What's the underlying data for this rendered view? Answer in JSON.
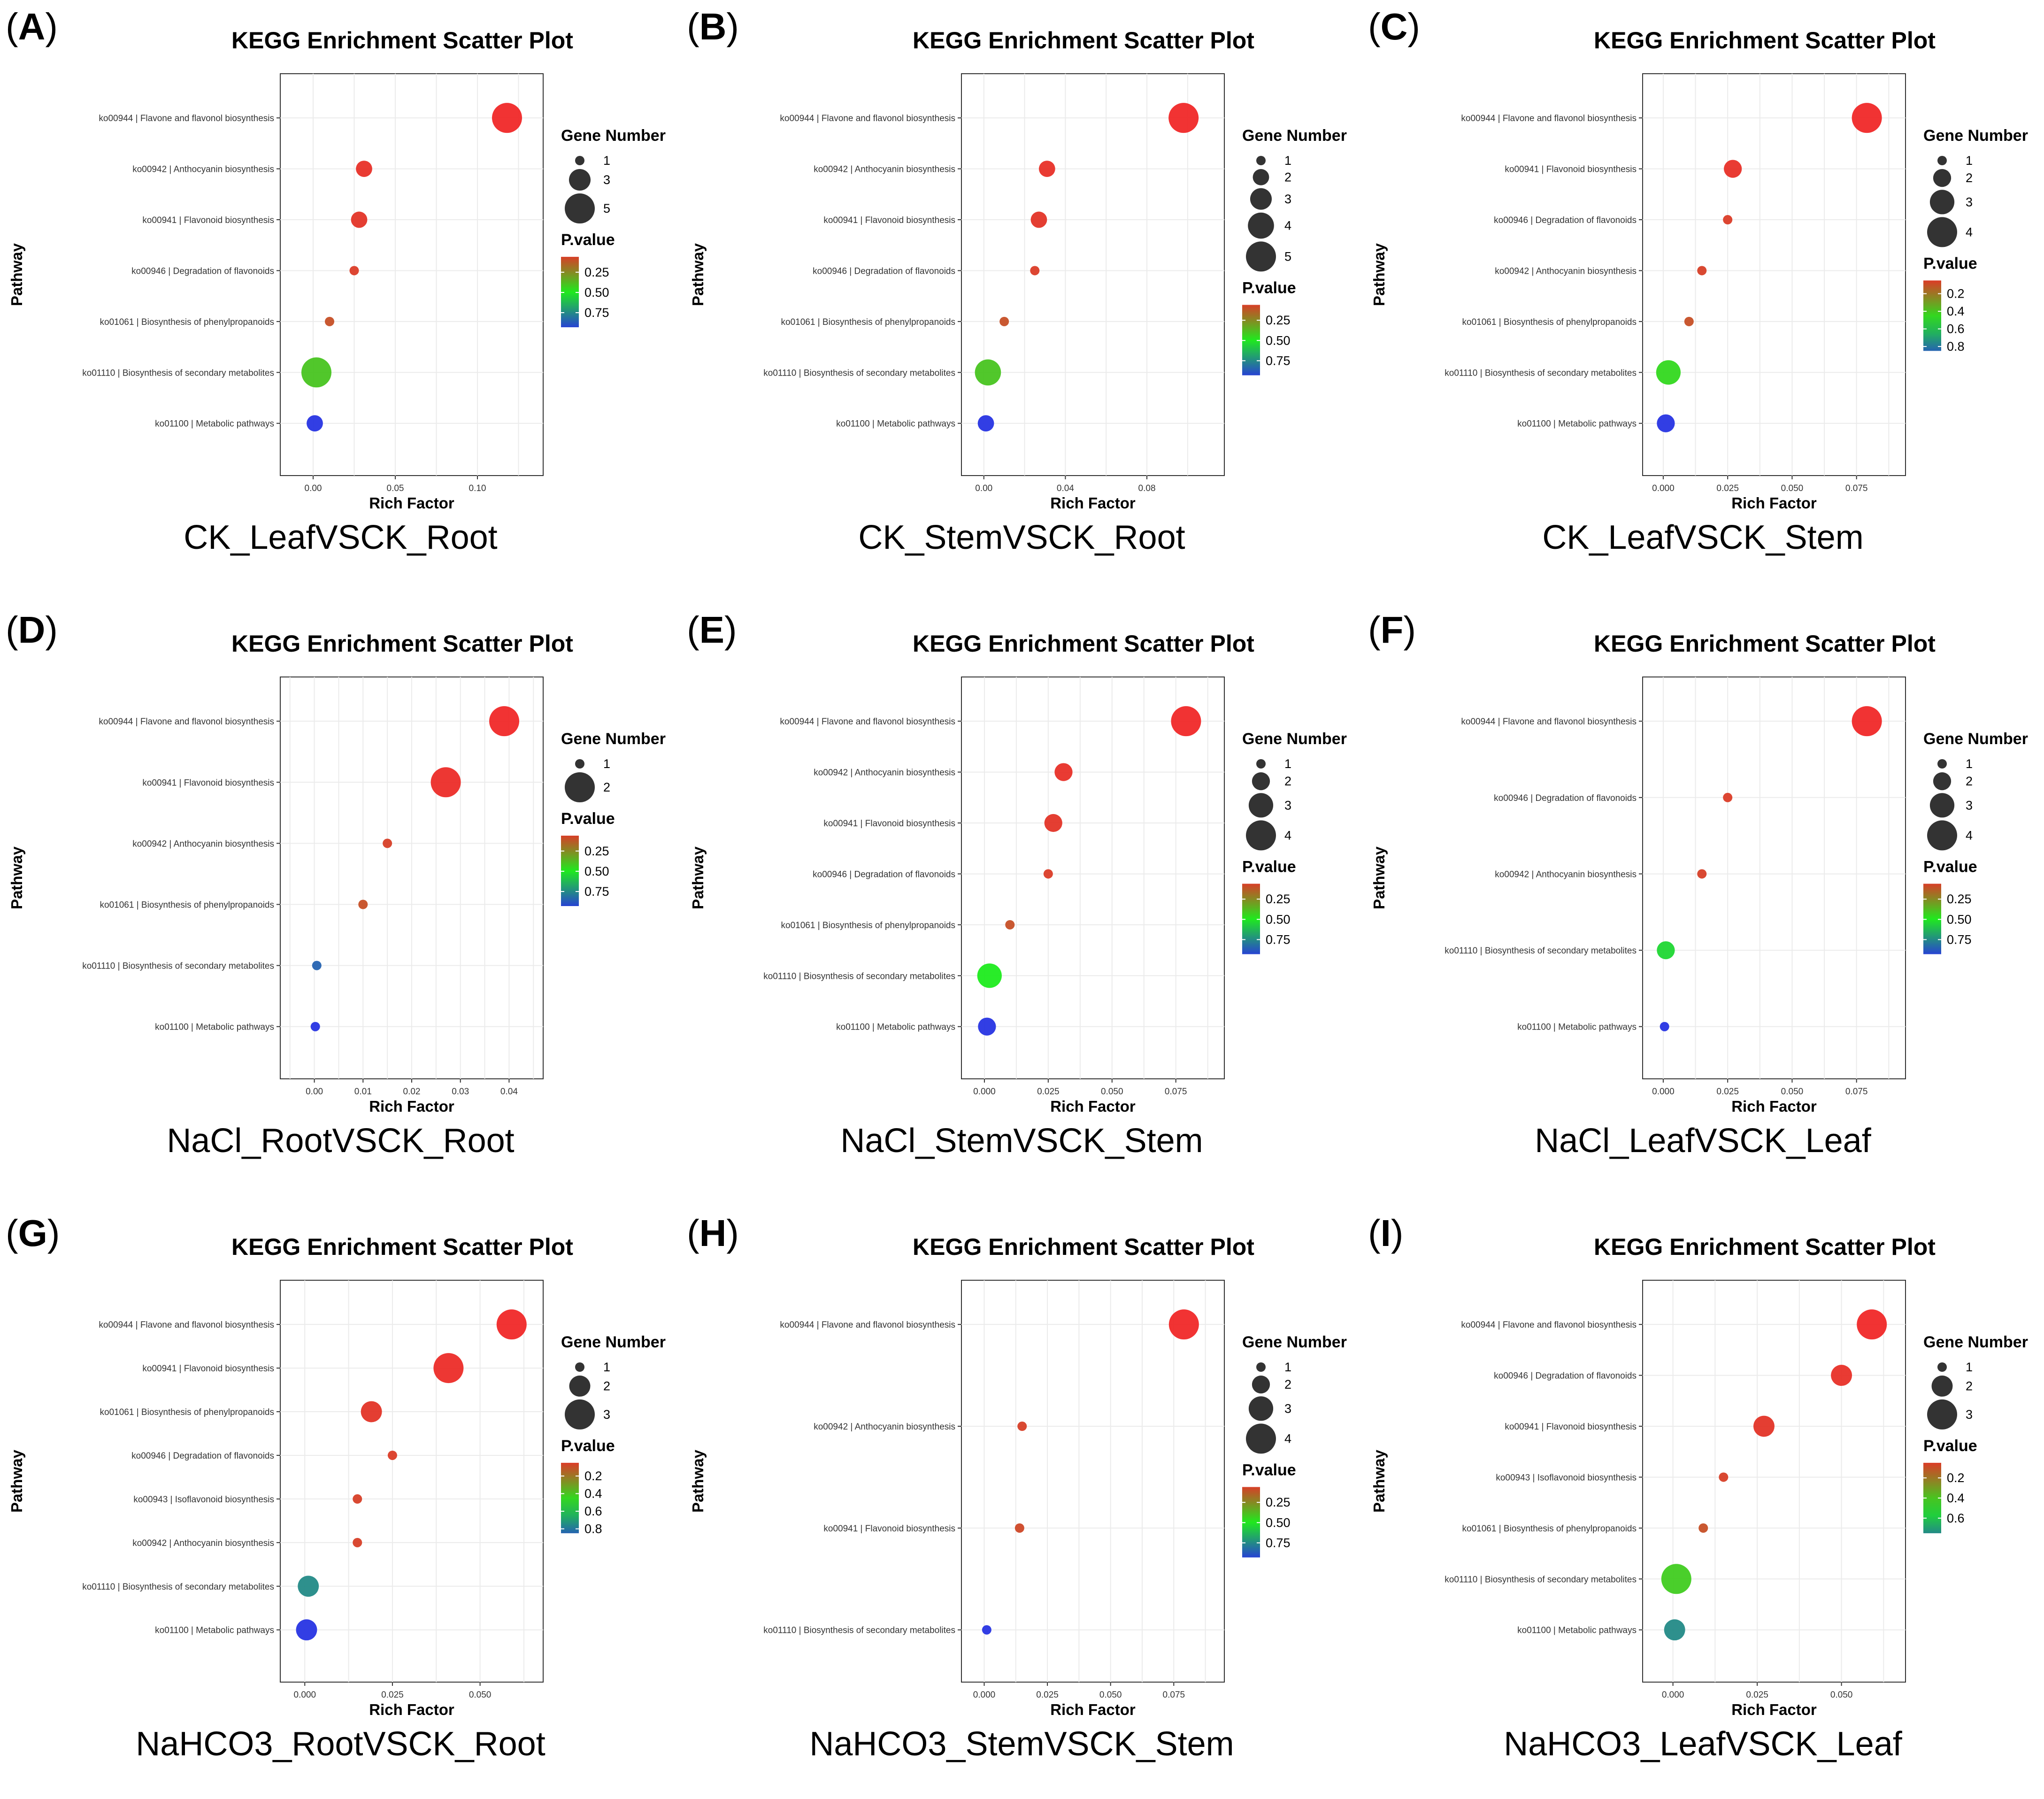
{
  "chart_data": [
    {
      "letter": "A",
      "type": "scatter",
      "title": "KEGG Enrichment Scatter Plot",
      "caption": "CK_LeafVSCK_Root",
      "xlabel": "Rich Factor",
      "ylabel": "Pathway",
      "xlim": [
        -0.02,
        0.14
      ],
      "xticks": [
        0,
        0.05,
        0.1
      ],
      "xtick_labels": [
        "0.00",
        "0.05",
        "0.10"
      ],
      "pathways": [
        "ko00944 | Flavone and flavonol biosynthesis",
        "ko00942 | Anthocyanin biosynthesis",
        "ko00941 | Flavonoid biosynthesis",
        "ko00946 | Degradation of flavonoids",
        "ko01061 | Biosynthesis of phenylpropanoids",
        "ko01110 | Biosynthesis of secondary metabolites",
        "ko01100 | Metabolic pathways"
      ],
      "rich_factor": [
        0.118,
        0.031,
        0.028,
        0.025,
        0.01,
        0.002,
        0.001
      ],
      "gene_number": [
        5,
        2,
        2,
        1,
        1,
        5,
        2
      ],
      "p_value": [
        0.0,
        0.02,
        0.03,
        0.05,
        0.1,
        0.4,
        0.97
      ],
      "size_legend": {
        "title": "Gene Number",
        "values": [
          1,
          3,
          5
        ],
        "labels": [
          "1",
          "3",
          "5"
        ]
      },
      "color_legend": {
        "title": "P.value",
        "min": 0.06,
        "max": 0.93,
        "ticks": [
          0.25,
          0.5,
          0.75
        ],
        "tick_labels": [
          "0.25",
          "0.50",
          "0.75"
        ]
      }
    },
    {
      "letter": "B",
      "type": "scatter",
      "title": "KEGG Enrichment Scatter Plot",
      "caption": "CK_StemVSCK_Root",
      "xlabel": "Rich Factor",
      "ylabel": "Pathway",
      "xlim": [
        -0.011,
        0.118
      ],
      "xticks": [
        0,
        0.04,
        0.08
      ],
      "xtick_labels": [
        "0.00",
        "0.04",
        "0.08"
      ],
      "pathways": [
        "ko00944 | Flavone and flavonol biosynthesis",
        "ko00942 | Anthocyanin biosynthesis",
        "ko00941 | Flavonoid biosynthesis",
        "ko00946 | Degradation of flavonoids",
        "ko01061 | Biosynthesis of phenylpropanoids",
        "ko01110 | Biosynthesis of secondary metabolites",
        "ko01100 | Metabolic pathways"
      ],
      "rich_factor": [
        0.098,
        0.031,
        0.027,
        0.025,
        0.01,
        0.002,
        0.001
      ],
      "gene_number": [
        5,
        2,
        2,
        1,
        1,
        4,
        2
      ],
      "p_value": [
        0.0,
        0.02,
        0.03,
        0.05,
        0.1,
        0.4,
        0.97
      ],
      "size_legend": {
        "title": "Gene Number",
        "values": [
          1,
          2,
          3,
          4,
          5
        ],
        "labels": [
          "1",
          "2",
          "3",
          "4",
          "5"
        ]
      },
      "color_legend": {
        "title": "P.value",
        "min": 0.06,
        "max": 0.93,
        "ticks": [
          0.25,
          0.5,
          0.75
        ],
        "tick_labels": [
          "0.25",
          "0.50",
          "0.75"
        ]
      }
    },
    {
      "letter": "C",
      "type": "scatter",
      "title": "KEGG Enrichment Scatter Plot",
      "caption": "CK_LeafVSCK_Stem",
      "xlabel": "Rich Factor",
      "ylabel": "Pathway",
      "xlim": [
        -0.008,
        0.094
      ],
      "xticks": [
        0,
        0.025,
        0.05,
        0.075
      ],
      "xtick_labels": [
        "0.000",
        "0.025",
        "0.050",
        "0.075"
      ],
      "pathways": [
        "ko00944 | Flavone and flavonol biosynthesis",
        "ko00941 | Flavonoid biosynthesis",
        "ko00946 | Degradation of flavonoids",
        "ko00942 | Anthocyanin biosynthesis",
        "ko01061 | Biosynthesis of phenylpropanoids",
        "ko01110 | Biosynthesis of secondary metabolites",
        "ko01100 | Metabolic pathways"
      ],
      "rich_factor": [
        0.079,
        0.027,
        0.025,
        0.015,
        0.01,
        0.002,
        0.001
      ],
      "gene_number": [
        4,
        2,
        1,
        1,
        1,
        3,
        2
      ],
      "p_value": [
        0.0,
        0.02,
        0.05,
        0.06,
        0.1,
        0.45,
        0.97
      ],
      "size_legend": {
        "title": "Gene Number",
        "values": [
          1,
          2,
          3,
          4
        ],
        "labels": [
          "1",
          "2",
          "3",
          "4"
        ]
      },
      "color_legend": {
        "title": "P.value",
        "min": 0.05,
        "max": 0.85,
        "ticks": [
          0.2,
          0.4,
          0.6,
          0.8
        ],
        "tick_labels": [
          "0.2",
          "0.4",
          "0.6",
          "0.8"
        ]
      }
    },
    {
      "letter": "D",
      "type": "scatter",
      "title": "KEGG Enrichment Scatter Plot",
      "caption": "NaCl_RootVSCK_Root",
      "xlabel": "Rich Factor",
      "ylabel": "Pathway",
      "xlim": [
        -0.007,
        0.047
      ],
      "xticks": [
        0,
        0.01,
        0.02,
        0.03,
        0.04
      ],
      "xtick_labels": [
        "0.00",
        "0.01",
        "0.02",
        "0.03",
        "0.04"
      ],
      "pathways": [
        "ko00944 | Flavone and flavonol biosynthesis",
        "ko00941 | Flavonoid biosynthesis",
        "ko00942 | Anthocyanin biosynthesis",
        "ko01061 | Biosynthesis of phenylpropanoids",
        "ko01110 | Biosynthesis of secondary metabolites",
        "ko01100 | Metabolic pathways"
      ],
      "rich_factor": [
        0.039,
        0.027,
        0.015,
        0.01,
        0.0005,
        0.0002
      ],
      "gene_number": [
        2,
        2,
        1,
        1,
        1,
        1
      ],
      "p_value": [
        0.0,
        0.01,
        0.06,
        0.1,
        0.85,
        0.97
      ],
      "size_legend": {
        "title": "Gene Number",
        "values": [
          1,
          2
        ],
        "labels": [
          "1",
          "2"
        ]
      },
      "color_legend": {
        "title": "P.value",
        "min": 0.06,
        "max": 0.93,
        "ticks": [
          0.25,
          0.5,
          0.75
        ],
        "tick_labels": [
          "0.25",
          "0.50",
          "0.75"
        ]
      }
    },
    {
      "letter": "E",
      "type": "scatter",
      "title": "KEGG Enrichment Scatter Plot",
      "caption": "NaCl_StemVSCK_Stem",
      "xlabel": "Rich Factor",
      "ylabel": "Pathway",
      "xlim": [
        -0.009,
        0.094
      ],
      "xticks": [
        0,
        0.025,
        0.05,
        0.075
      ],
      "xtick_labels": [
        "0.000",
        "0.025",
        "0.050",
        "0.075"
      ],
      "pathways": [
        "ko00944 | Flavone and flavonol biosynthesis",
        "ko00942 | Anthocyanin biosynthesis",
        "ko00941 | Flavonoid biosynthesis",
        "ko00946 | Degradation of flavonoids",
        "ko01061 | Biosynthesis of phenylpropanoids",
        "ko01110 | Biosynthesis of secondary metabolites",
        "ko01100 | Metabolic pathways"
      ],
      "rich_factor": [
        0.079,
        0.031,
        0.027,
        0.025,
        0.01,
        0.002,
        0.001
      ],
      "gene_number": [
        4,
        2,
        2,
        1,
        1,
        3,
        2
      ],
      "p_value": [
        0.0,
        0.02,
        0.03,
        0.05,
        0.1,
        0.5,
        0.97
      ],
      "size_legend": {
        "title": "Gene Number",
        "values": [
          1,
          2,
          3,
          4
        ],
        "labels": [
          "1",
          "2",
          "3",
          "4"
        ]
      },
      "color_legend": {
        "title": "P.value",
        "min": 0.06,
        "max": 0.93,
        "ticks": [
          0.25,
          0.5,
          0.75
        ],
        "tick_labels": [
          "0.25",
          "0.50",
          "0.75"
        ]
      }
    },
    {
      "letter": "F",
      "type": "scatter",
      "title": "KEGG Enrichment Scatter Plot",
      "caption": "NaCl_LeafVSCK_Leaf",
      "xlabel": "Rich Factor",
      "ylabel": "Pathway",
      "xlim": [
        -0.008,
        0.094
      ],
      "xticks": [
        0,
        0.025,
        0.05,
        0.075
      ],
      "xtick_labels": [
        "0.000",
        "0.025",
        "0.050",
        "0.075"
      ],
      "pathways": [
        "ko00944 | Flavone and flavonol biosynthesis",
        "ko00946 | Degradation of flavonoids",
        "ko00942 | Anthocyanin biosynthesis",
        "ko01110 | Biosynthesis of secondary metabolites",
        "ko01100 | Metabolic pathways"
      ],
      "rich_factor": [
        0.079,
        0.025,
        0.015,
        0.001,
        0.0005
      ],
      "gene_number": [
        4,
        1,
        1,
        2,
        1
      ],
      "p_value": [
        0.0,
        0.05,
        0.06,
        0.55,
        0.97
      ],
      "size_legend": {
        "title": "Gene Number",
        "values": [
          1,
          2,
          3,
          4
        ],
        "labels": [
          "1",
          "2",
          "3",
          "4"
        ]
      },
      "color_legend": {
        "title": "P.value",
        "min": 0.06,
        "max": 0.93,
        "ticks": [
          0.25,
          0.5,
          0.75
        ],
        "tick_labels": [
          "0.25",
          "0.50",
          "0.75"
        ]
      }
    },
    {
      "letter": "G",
      "type": "scatter",
      "title": "KEGG Enrichment Scatter Plot",
      "caption": "NaHCO3_RootVSCK_Root",
      "xlabel": "Rich Factor",
      "ylabel": "Pathway",
      "xlim": [
        -0.007,
        0.068
      ],
      "xticks": [
        0,
        0.025,
        0.05
      ],
      "xtick_labels": [
        "0.000",
        "0.025",
        "0.050"
      ],
      "pathways": [
        "ko00944 | Flavone and flavonol biosynthesis",
        "ko00941 | Flavonoid biosynthesis",
        "ko01061 | Biosynthesis of phenylpropanoids",
        "ko00946 | Degradation of flavonoids",
        "ko00943 | Isoflavonoid biosynthesis",
        "ko00942 | Anthocyanin biosynthesis",
        "ko01110 | Biosynthesis of secondary metabolites",
        "ko01100 | Metabolic pathways"
      ],
      "rich_factor": [
        0.059,
        0.041,
        0.019,
        0.025,
        0.015,
        0.015,
        0.001,
        0.0005
      ],
      "gene_number": [
        3,
        3,
        2,
        1,
        1,
        1,
        2,
        2
      ],
      "p_value": [
        0.0,
        0.01,
        0.03,
        0.05,
        0.06,
        0.06,
        0.75,
        0.97
      ],
      "size_legend": {
        "title": "Gene Number",
        "values": [
          1,
          2,
          3
        ],
        "labels": [
          "1",
          "2",
          "3"
        ]
      },
      "color_legend": {
        "title": "P.value",
        "min": 0.05,
        "max": 0.85,
        "ticks": [
          0.2,
          0.4,
          0.6,
          0.8
        ],
        "tick_labels": [
          "0.2",
          "0.4",
          "0.6",
          "0.8"
        ]
      }
    },
    {
      "letter": "H",
      "type": "scatter",
      "title": "KEGG Enrichment Scatter Plot",
      "caption": "NaHCO3_StemVSCK_Stem",
      "xlabel": "Rich Factor",
      "ylabel": "Pathway",
      "xlim": [
        -0.009,
        0.095
      ],
      "xticks": [
        0,
        0.025,
        0.05,
        0.075
      ],
      "xtick_labels": [
        "0.000",
        "0.025",
        "0.050",
        "0.075"
      ],
      "pathways": [
        "ko00944 | Flavone and flavonol biosynthesis",
        "ko00942 | Anthocyanin biosynthesis",
        "ko00941 | Flavonoid biosynthesis",
        "ko01110 | Biosynthesis of secondary metabolites"
      ],
      "rich_factor": [
        0.079,
        0.015,
        0.014,
        0.001
      ],
      "gene_number": [
        4,
        1,
        1,
        1
      ],
      "p_value": [
        0.0,
        0.06,
        0.08,
        0.97
      ],
      "size_legend": {
        "title": "Gene Number",
        "values": [
          1,
          2,
          3,
          4
        ],
        "labels": [
          "1",
          "2",
          "3",
          "4"
        ]
      },
      "color_legend": {
        "title": "P.value",
        "min": 0.06,
        "max": 0.93,
        "ticks": [
          0.25,
          0.5,
          0.75
        ],
        "tick_labels": [
          "0.25",
          "0.50",
          "0.75"
        ]
      }
    },
    {
      "letter": "I",
      "type": "scatter",
      "title": "KEGG Enrichment Scatter Plot",
      "caption": "NaHCO3_LeafVSCK_Leaf",
      "xlabel": "Rich Factor",
      "ylabel": "Pathway",
      "xlim": [
        -0.009,
        0.069
      ],
      "xticks": [
        0,
        0.025,
        0.05
      ],
      "xtick_labels": [
        "0.000",
        "0.025",
        "0.050"
      ],
      "pathways": [
        "ko00944 | Flavone and flavonol biosynthesis",
        "ko00946 | Degradation of flavonoids",
        "ko00941 | Flavonoid biosynthesis",
        "ko00943 | Isoflavonoid biosynthesis",
        "ko01061 | Biosynthesis of phenylpropanoids",
        "ko01110 | Biosynthesis of secondary metabolites",
        "ko01100 | Metabolic pathways"
      ],
      "rich_factor": [
        0.059,
        0.05,
        0.027,
        0.015,
        0.009,
        0.001,
        0.0005
      ],
      "gene_number": [
        3,
        2,
        2,
        1,
        1,
        3,
        2
      ],
      "p_value": [
        0.0,
        0.02,
        0.03,
        0.06,
        0.1,
        0.42,
        0.75
      ],
      "size_legend": {
        "title": "Gene Number",
        "values": [
          1,
          2,
          3
        ],
        "labels": [
          "1",
          "2",
          "3"
        ]
      },
      "color_legend": {
        "title": "P.value",
        "min": 0.05,
        "max": 0.75,
        "ticks": [
          0.2,
          0.4,
          0.6
        ],
        "tick_labels": [
          "0.2",
          "0.4",
          "0.6"
        ]
      }
    }
  ]
}
